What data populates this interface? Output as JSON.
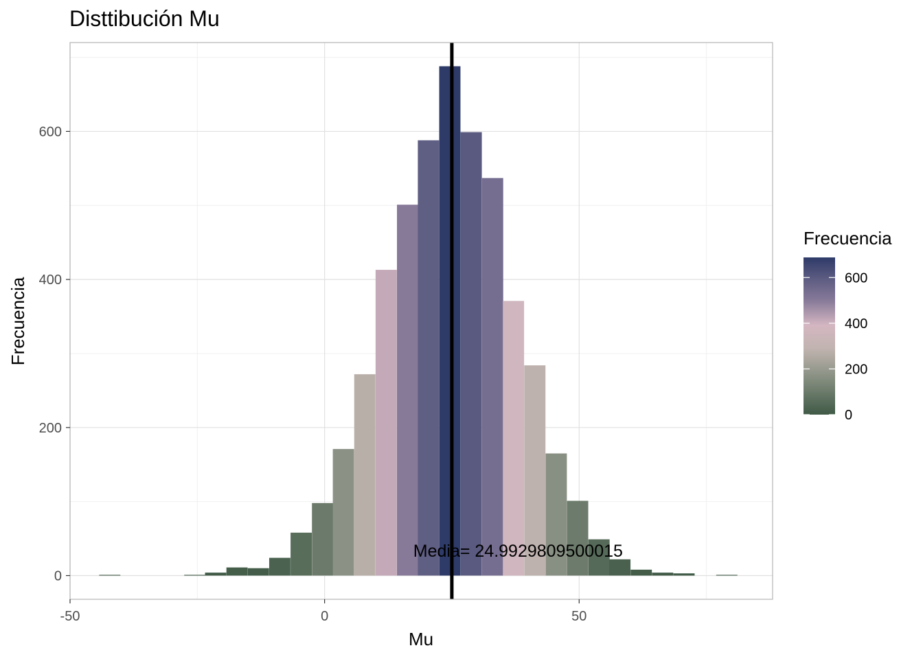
{
  "chart_data": {
    "type": "bar",
    "title": "Disttibución Mu",
    "xlabel": "Mu",
    "ylabel": "Frecuencia",
    "xlim": [
      -50,
      88
    ],
    "ylim": [
      -32,
      720
    ],
    "x_ticks": [
      -50,
      0,
      50
    ],
    "x_tick_labels": [
      "-50",
      "0",
      "50"
    ],
    "y_ticks": [
      0,
      200,
      400,
      600
    ],
    "y_tick_labels": [
      "0",
      "200",
      "400",
      "600"
    ],
    "grid": true,
    "bin_width": 4.17,
    "bins": [
      {
        "x": -42.2,
        "count": 1
      },
      {
        "x": -25.5,
        "count": 1
      },
      {
        "x": -21.4,
        "count": 4
      },
      {
        "x": -17.2,
        "count": 11
      },
      {
        "x": -13.0,
        "count": 10
      },
      {
        "x": -8.8,
        "count": 24
      },
      {
        "x": -4.6,
        "count": 58
      },
      {
        "x": -0.4,
        "count": 98
      },
      {
        "x": 3.7,
        "count": 171
      },
      {
        "x": 7.9,
        "count": 272
      },
      {
        "x": 12.1,
        "count": 413
      },
      {
        "x": 16.3,
        "count": 501
      },
      {
        "x": 20.4,
        "count": 588
      },
      {
        "x": 24.6,
        "count": 688
      },
      {
        "x": 28.8,
        "count": 599
      },
      {
        "x": 33.0,
        "count": 537
      },
      {
        "x": 37.1,
        "count": 371
      },
      {
        "x": 41.3,
        "count": 284
      },
      {
        "x": 45.5,
        "count": 165
      },
      {
        "x": 49.7,
        "count": 101
      },
      {
        "x": 53.9,
        "count": 49
      },
      {
        "x": 58.0,
        "count": 22
      },
      {
        "x": 62.2,
        "count": 8
      },
      {
        "x": 66.4,
        "count": 4
      },
      {
        "x": 70.6,
        "count": 3
      },
      {
        "x": 79.0,
        "count": 1
      }
    ],
    "mean_line": {
      "x": 24.9929809500015
    },
    "annotation": {
      "text": "Media= 24.9929809500015",
      "x": 38,
      "y": 34
    },
    "legend": {
      "title": "Frecuencia",
      "placement": "right",
      "type": "colorbar",
      "range": [
        0,
        688
      ],
      "ticks": [
        0,
        200,
        400,
        600
      ],
      "tick_labels": [
        "0",
        "200",
        "400",
        "600"
      ],
      "gradient": [
        {
          "value": 0,
          "color": "#3f5a46"
        },
        {
          "value": 180,
          "color": "#8f9588"
        },
        {
          "value": 290,
          "color": "#c1b4b0"
        },
        {
          "value": 390,
          "color": "#d4b6c1"
        },
        {
          "value": 500,
          "color": "#877a99"
        },
        {
          "value": 600,
          "color": "#5a5a80"
        },
        {
          "value": 688,
          "color": "#2e3a68"
        }
      ]
    }
  }
}
